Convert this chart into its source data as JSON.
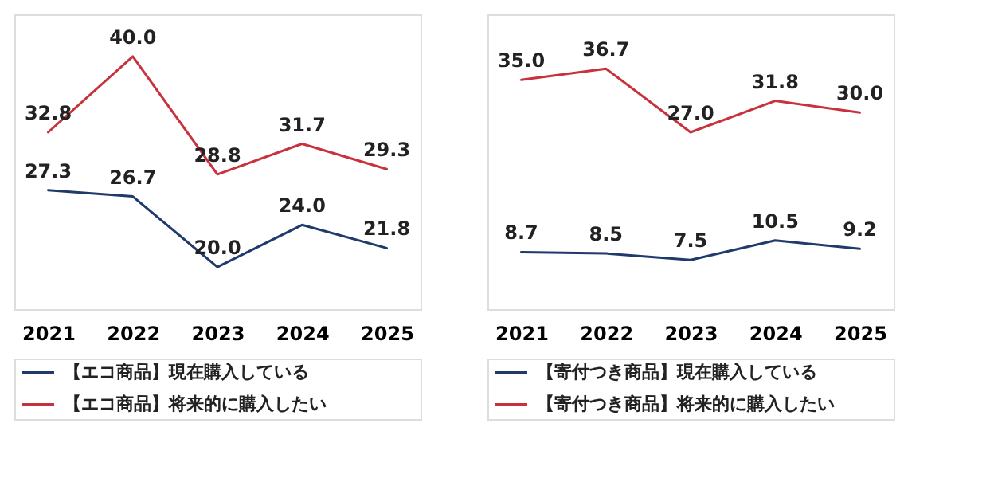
{
  "chart_data": [
    {
      "type": "line",
      "categories": [
        "2021",
        "2022",
        "2023",
        "2024",
        "2025"
      ],
      "legend": "bottom",
      "marker": "none",
      "grid": false,
      "tick_labels": "x",
      "line_style": "solid",
      "series": [
        {
          "name": "【エコ商品】現在購入している",
          "color": "#1f3a6b",
          "values": [
            27.3,
            26.7,
            20.0,
            24.0,
            21.8
          ],
          "value_labels": [
            "27.3",
            "26.7",
            "20.0",
            "24.0",
            "21.8"
          ]
        },
        {
          "name": "【エコ商品】将来的に購入したい",
          "color": "#c8323c",
          "values": [
            32.8,
            40.0,
            28.8,
            31.7,
            29.3
          ],
          "value_labels": [
            "32.8",
            "40.0",
            "28.8",
            "31.7",
            "29.3"
          ]
        }
      ]
    },
    {
      "type": "line",
      "categories": [
        "2021",
        "2022",
        "2023",
        "2024",
        "2025"
      ],
      "legend": "bottom",
      "marker": "none",
      "grid": false,
      "tick_labels": "x",
      "line_style": "solid",
      "series": [
        {
          "name": "【寄付つき商品】現在購入している",
          "color": "#1f3a6b",
          "values": [
            8.7,
            8.5,
            7.5,
            10.5,
            9.2
          ],
          "value_labels": [
            "8.7",
            "8.5",
            "7.5",
            "10.5",
            "9.2"
          ]
        },
        {
          "name": "【寄付つき商品】将来的に購入したい",
          "color": "#c8323c",
          "values": [
            35.0,
            36.7,
            27.0,
            31.8,
            30.0
          ],
          "value_labels": [
            "35.0",
            "36.7",
            "27.0",
            "31.8",
            "30.0"
          ]
        }
      ]
    }
  ]
}
